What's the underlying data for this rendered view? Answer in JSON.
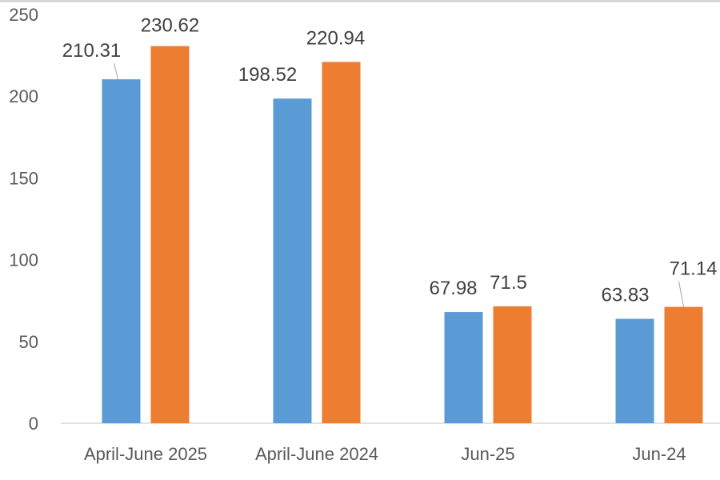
{
  "chart_data": {
    "type": "bar",
    "title": "",
    "xlabel": "",
    "ylabel": "",
    "categories": [
      "April-June 2025",
      "April-June 2024",
      "Jun-25",
      "Jun-24"
    ],
    "series": [
      {
        "color": "#5b9bd5",
        "values": [
          210.31,
          198.52,
          67.98,
          63.83
        ]
      },
      {
        "color": "#ed7d31",
        "values": [
          230.62,
          220.94,
          71.5,
          71.14
        ]
      }
    ],
    "ylim": [
      0,
      250
    ],
    "yticks": [
      "0",
      "50",
      "100",
      "150",
      "200",
      "250"
    ],
    "grid": false,
    "legend": "none"
  }
}
